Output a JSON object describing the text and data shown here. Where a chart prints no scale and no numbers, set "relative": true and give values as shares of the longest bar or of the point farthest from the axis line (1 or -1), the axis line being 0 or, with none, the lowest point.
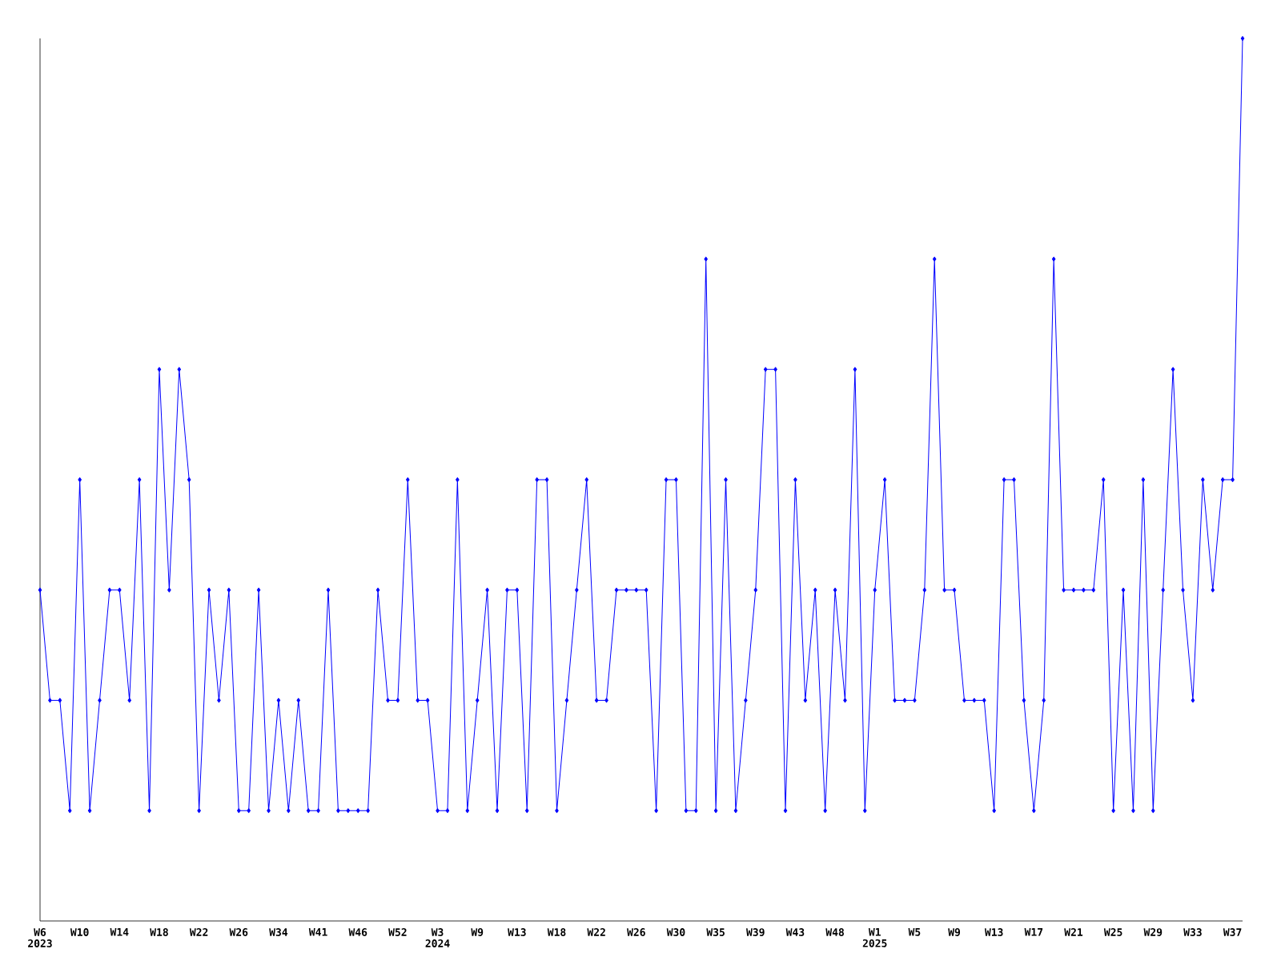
{
  "chart_data": {
    "type": "line",
    "relative": true,
    "color": "#0000ff",
    "marker": "diamond",
    "categories": [
      "W6 2023",
      null,
      null,
      null,
      "W10",
      null,
      null,
      null,
      "W14",
      null,
      null,
      null,
      "W18",
      null,
      null,
      null,
      "W22",
      null,
      null,
      null,
      "W26",
      null,
      null,
      null,
      "W34",
      null,
      null,
      null,
      "W41",
      null,
      null,
      null,
      "W46",
      null,
      null,
      null,
      "W52",
      null,
      null,
      null,
      "W3 2024",
      null,
      null,
      null,
      "W9",
      null,
      null,
      null,
      "W13",
      null,
      null,
      null,
      "W18",
      null,
      null,
      null,
      "W22",
      null,
      null,
      null,
      "W26",
      null,
      null,
      null,
      "W30",
      null,
      null,
      null,
      "W35",
      null,
      null,
      null,
      "W39",
      null,
      null,
      null,
      "W43",
      null,
      null,
      null,
      "W48",
      null,
      null,
      null,
      "W1 2025",
      null,
      null,
      null,
      "W5",
      null,
      null,
      null,
      "W9",
      null,
      null,
      null,
      "W13",
      null,
      null,
      null,
      "W17",
      null,
      null,
      null,
      "W21",
      null,
      null,
      null,
      "W25",
      null,
      null,
      null,
      "W29",
      null,
      null,
      null,
      "W33",
      null,
      null,
      null,
      "W37",
      null
    ],
    "values": [
      0.375,
      0.25,
      0.25,
      0.125,
      0.5,
      0.125,
      0.25,
      0.375,
      0.375,
      0.25,
      0.5,
      0.125,
      0.625,
      0.375,
      0.625,
      0.5,
      0.125,
      0.375,
      0.25,
      0.375,
      0.125,
      0.125,
      0.375,
      0.125,
      0.25,
      0.125,
      0.25,
      0.125,
      0.125,
      0.375,
      0.125,
      0.125,
      0.125,
      0.125,
      0.375,
      0.25,
      0.25,
      0.5,
      0.25,
      0.25,
      0.125,
      0.125,
      0.5,
      0.125,
      0.25,
      0.375,
      0.125,
      0.375,
      0.375,
      0.125,
      0.5,
      0.5,
      0.125,
      0.25,
      0.375,
      0.5,
      0.25,
      0.25,
      0.375,
      0.375,
      0.375,
      0.375,
      0.125,
      0.5,
      0.5,
      0.125,
      0.125,
      0.75,
      0.125,
      0.5,
      0.125,
      0.25,
      0.375,
      0.625,
      0.625,
      0.125,
      0.5,
      0.25,
      0.375,
      0.125,
      0.375,
      0.25,
      0.625,
      0.125,
      0.375,
      0.5,
      0.25,
      0.25,
      0.25,
      0.375,
      0.75,
      0.375,
      0.375,
      0.25,
      0.25,
      0.25,
      0.125,
      0.5,
      0.5,
      0.25,
      0.125,
      0.25,
      0.75,
      0.375,
      0.375,
      0.375,
      0.375,
      0.5,
      0.125,
      0.375,
      0.125,
      0.5,
      0.125,
      0.375,
      0.625,
      0.375,
      0.25,
      0.5,
      0.375,
      0.5,
      0.5,
      1
    ]
  }
}
